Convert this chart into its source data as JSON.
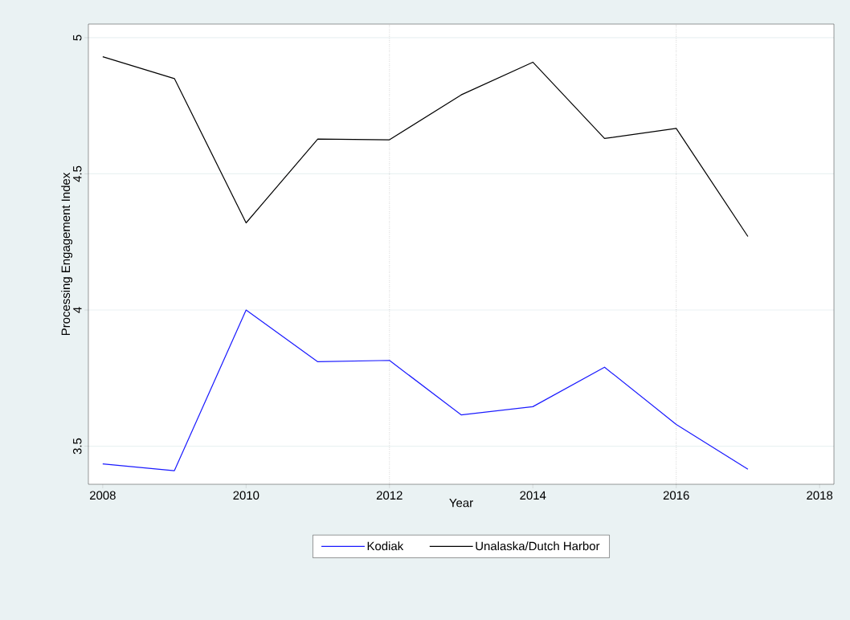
{
  "chart_data": {
    "type": "line",
    "xlabel": "Year",
    "ylabel": "Processing Engagement Index",
    "x": [
      2008,
      2009,
      2010,
      2011,
      2012,
      2013,
      2014,
      2015,
      2016,
      2017
    ],
    "series": [
      {
        "name": "Kodiak",
        "color": "#1a1aff",
        "values": [
          3.435,
          3.41,
          4.0,
          3.81,
          3.815,
          3.615,
          3.645,
          3.79,
          3.58,
          3.415
        ]
      },
      {
        "name": "Unalaska/Dutch Harbor",
        "color": "#000000",
        "values": [
          4.93,
          4.85,
          4.32,
          4.628,
          4.625,
          4.79,
          4.91,
          4.63,
          4.667,
          4.27
        ]
      }
    ],
    "xlim": [
      2007.8,
      2018.2
    ],
    "ylim": [
      3.36,
      5.05
    ],
    "xticks": [
      2008,
      2010,
      2012,
      2014,
      2016,
      2018
    ],
    "yticks": [
      3.5,
      4,
      4.5,
      5
    ],
    "ref_lines": [
      {
        "axis": "x",
        "value": 2012,
        "color": "#000000",
        "line_style": "dotted"
      },
      {
        "axis": "x",
        "value": 2016,
        "color": "#000000",
        "line_style": "dotted"
      }
    ],
    "grid": "y",
    "legend": "bottom",
    "marker": "none",
    "line_style": "solid"
  }
}
